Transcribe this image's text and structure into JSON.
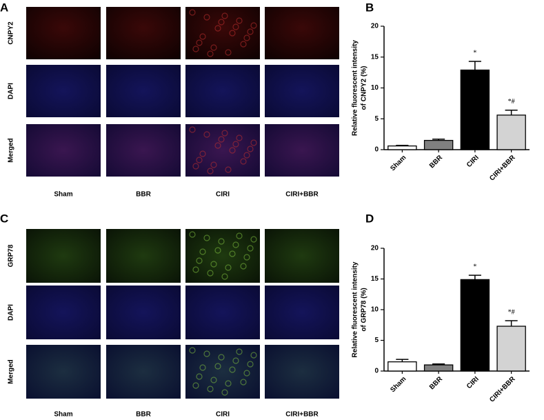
{
  "figure": {
    "panel_labels": [
      "A",
      "B",
      "C",
      "D"
    ],
    "image_grids": [
      {
        "row_labels": [
          "CNPY2",
          "DAPI",
          "Merged"
        ],
        "column_labels": [
          "Sham",
          "BBR",
          "CIRI",
          "CIRI+BBR"
        ]
      },
      {
        "row_labels": [
          "GRP78",
          "DAPI",
          "Merged"
        ],
        "column_labels": [
          "Sham",
          "BBR",
          "CIRI",
          "CIRI+BBR"
        ]
      }
    ]
  },
  "chart_data": [
    {
      "type": "bar",
      "ylabel": [
        "Relative fluorescent intensity",
        "of CNPY2 (%)"
      ],
      "categories": [
        "Sham",
        "BBR",
        "CIRI",
        "CIRI+BBR"
      ],
      "values": [
        0.6,
        1.5,
        12.9,
        5.6
      ],
      "errors": [
        0.1,
        0.2,
        1.4,
        0.8
      ],
      "colors": [
        "#ffffff",
        "#808080",
        "#000000",
        "#d3d3d3"
      ],
      "annotations": [
        null,
        null,
        "*",
        "*#"
      ],
      "ylim": [
        0,
        20
      ],
      "yticks": [
        0,
        5,
        10,
        15,
        20
      ]
    },
    {
      "type": "bar",
      "ylabel": [
        "Relative fluorescent intensity",
        "of GRP78 (%)"
      ],
      "categories": [
        "Sham",
        "BBR",
        "CIRI",
        "CIRI+BBR"
      ],
      "values": [
        1.5,
        1.0,
        14.9,
        7.3
      ],
      "errors": [
        0.4,
        0.15,
        0.7,
        0.9
      ],
      "colors": [
        "#ffffff",
        "#808080",
        "#000000",
        "#d3d3d3"
      ],
      "annotations": [
        null,
        null,
        "*",
        "*#"
      ],
      "ylim": [
        0,
        20
      ],
      "yticks": [
        0,
        5,
        10,
        15,
        20
      ]
    }
  ]
}
